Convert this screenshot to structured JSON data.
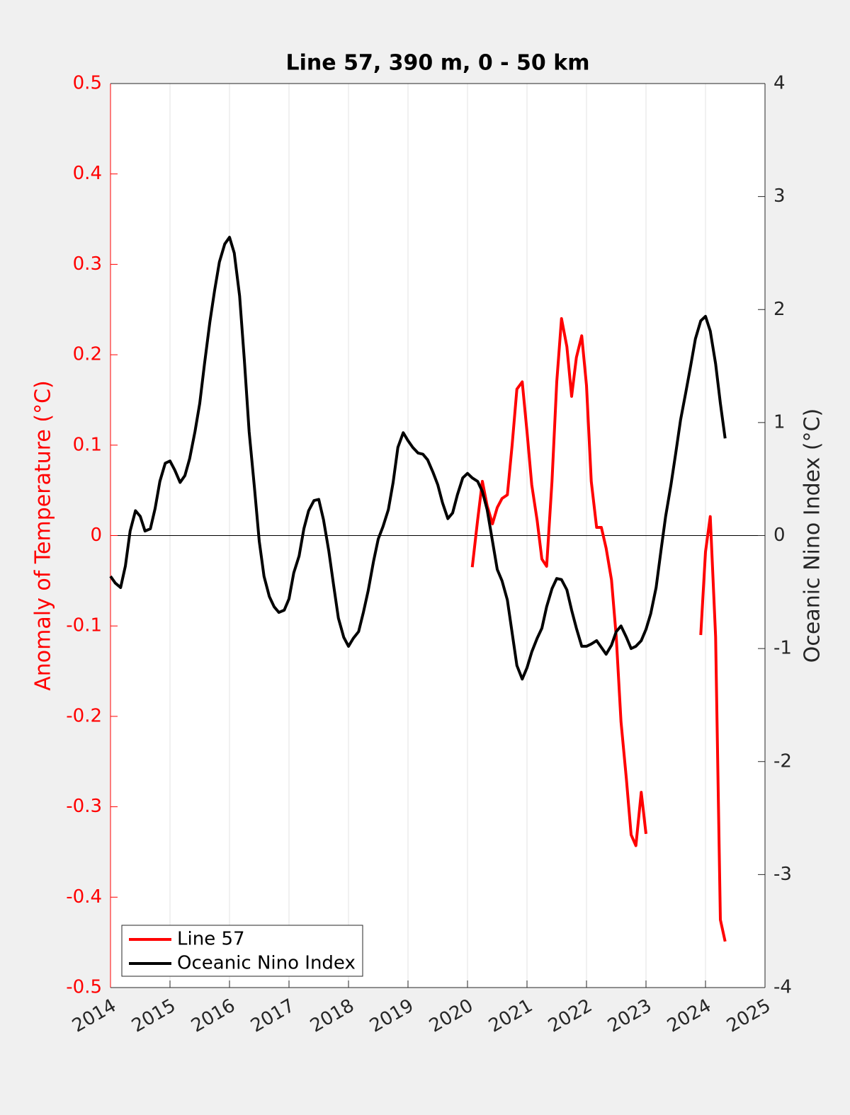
{
  "chart_data": {
    "type": "line",
    "title": "Line 57, 390 m, 0 - 50 km",
    "ylabel": "Anomaly of Temperature (°C)",
    "y2label": "Oceanic Nino Index (°C)",
    "ylabel_color": "#ff0000",
    "xlim": [
      2014,
      2025
    ],
    "xticks": [
      2014,
      2015,
      2016,
      2017,
      2018,
      2019,
      2020,
      2021,
      2022,
      2023,
      2024,
      2025
    ],
    "ylim": [
      -0.5,
      0.5
    ],
    "yticks": [
      -0.5,
      -0.4,
      -0.3,
      -0.2,
      -0.1,
      0,
      0.1,
      0.2,
      0.3,
      0.4,
      0.5
    ],
    "y2lim": [
      -4,
      4
    ],
    "y2ticks": [
      -4,
      -3,
      -2,
      -1,
      0,
      1,
      2,
      3,
      4
    ],
    "grid": "x",
    "legend": "lower left",
    "x": [
      2014.0,
      2014.08,
      2014.17,
      2014.25,
      2014.33,
      2014.42,
      2014.5,
      2014.58,
      2014.67,
      2014.75,
      2014.83,
      2014.92,
      2015.0,
      2015.08,
      2015.17,
      2015.25,
      2015.33,
      2015.42,
      2015.5,
      2015.58,
      2015.67,
      2015.75,
      2015.83,
      2015.92,
      2016.0,
      2016.08,
      2016.17,
      2016.25,
      2016.33,
      2016.42,
      2016.5,
      2016.58,
      2016.67,
      2016.75,
      2016.83,
      2016.92,
      2017.0,
      2017.08,
      2017.17,
      2017.25,
      2017.33,
      2017.42,
      2017.5,
      2017.58,
      2017.67,
      2017.75,
      2017.83,
      2017.92,
      2018.0,
      2018.08,
      2018.17,
      2018.25,
      2018.33,
      2018.42,
      2018.5,
      2018.58,
      2018.67,
      2018.75,
      2018.83,
      2018.92,
      2019.0,
      2019.08,
      2019.17,
      2019.25,
      2019.33,
      2019.42,
      2019.5,
      2019.58,
      2019.67,
      2019.75,
      2019.83,
      2019.92,
      2020.0,
      2020.08,
      2020.17,
      2020.25,
      2020.33,
      2020.42,
      2020.5,
      2020.58,
      2020.67,
      2020.75,
      2020.83,
      2020.92,
      2021.0,
      2021.08,
      2021.17,
      2021.25,
      2021.33,
      2021.42,
      2021.5,
      2021.58,
      2021.67,
      2021.75,
      2021.83,
      2021.92,
      2022.0,
      2022.08,
      2022.17,
      2022.25,
      2022.33,
      2022.42,
      2022.5,
      2022.58,
      2022.67,
      2022.75,
      2022.83,
      2022.92,
      2023.0,
      2023.08,
      2023.17,
      2023.25,
      2023.33,
      2023.42,
      2023.5,
      2023.58,
      2023.67,
      2023.75,
      2023.83,
      2023.92,
      2024.0,
      2024.08,
      2024.17,
      2024.25,
      2024.33
    ],
    "series": [
      {
        "name": "Line 57",
        "color": "#ff0000",
        "axis": "y",
        "values": [
          null,
          null,
          null,
          null,
          null,
          null,
          null,
          null,
          null,
          null,
          null,
          null,
          null,
          null,
          null,
          null,
          null,
          null,
          null,
          null,
          null,
          null,
          null,
          null,
          null,
          null,
          null,
          null,
          null,
          null,
          null,
          null,
          null,
          null,
          null,
          null,
          null,
          null,
          null,
          null,
          null,
          null,
          null,
          null,
          null,
          null,
          null,
          null,
          null,
          null,
          null,
          null,
          null,
          null,
          null,
          null,
          null,
          null,
          null,
          null,
          null,
          null,
          null,
          null,
          null,
          null,
          null,
          null,
          null,
          null,
          null,
          null,
          null,
          -0.035,
          0.017,
          0.06,
          0.033,
          0.013,
          0.031,
          0.041,
          0.045,
          0.1,
          0.162,
          0.17,
          0.115,
          0.056,
          0.017,
          -0.026,
          -0.034,
          0.06,
          0.17,
          0.24,
          0.209,
          0.154,
          0.197,
          0.221,
          0.166,
          0.06,
          0.009,
          0.009,
          -0.014,
          -0.049,
          -0.112,
          -0.206,
          -0.269,
          -0.331,
          -0.343,
          -0.284,
          -0.33,
          null,
          null,
          null,
          null,
          null,
          null,
          null,
          null,
          null,
          null,
          -0.11,
          -0.018,
          0.021,
          -0.112,
          -0.425,
          -0.449
        ]
      },
      {
        "name": "Oceanic Nino Index",
        "color": "#000000",
        "axis": "y2",
        "values": [
          -0.36,
          -0.42,
          -0.46,
          -0.27,
          0.04,
          0.22,
          0.17,
          0.04,
          0.06,
          0.24,
          0.48,
          0.64,
          0.66,
          0.58,
          0.47,
          0.53,
          0.68,
          0.92,
          1.17,
          1.52,
          1.89,
          2.17,
          2.42,
          2.58,
          2.64,
          2.5,
          2.12,
          1.55,
          0.92,
          0.42,
          -0.05,
          -0.36,
          -0.54,
          -0.63,
          -0.68,
          -0.66,
          -0.56,
          -0.33,
          -0.18,
          0.06,
          0.22,
          0.31,
          0.32,
          0.14,
          -0.14,
          -0.44,
          -0.73,
          -0.9,
          -0.98,
          -0.91,
          -0.85,
          -0.68,
          -0.49,
          -0.23,
          -0.03,
          0.08,
          0.23,
          0.47,
          0.78,
          0.91,
          0.84,
          0.78,
          0.73,
          0.72,
          0.67,
          0.56,
          0.45,
          0.29,
          0.15,
          0.2,
          0.36,
          0.51,
          0.55,
          0.51,
          0.48,
          0.39,
          0.23,
          -0.05,
          -0.3,
          -0.4,
          -0.57,
          -0.86,
          -1.15,
          -1.27,
          -1.17,
          -1.03,
          -0.91,
          -0.82,
          -0.63,
          -0.47,
          -0.38,
          -0.39,
          -0.48,
          -0.66,
          -0.82,
          -0.98,
          -0.98,
          -0.96,
          -0.93,
          -0.99,
          -1.05,
          -0.97,
          -0.85,
          -0.8,
          -0.9,
          -1.0,
          -0.98,
          -0.93,
          -0.83,
          -0.69,
          -0.46,
          -0.14,
          0.17,
          0.45,
          0.73,
          1.02,
          1.27,
          1.5,
          1.74,
          1.9,
          1.94,
          1.81,
          1.52,
          1.17,
          0.86
        ]
      }
    ]
  }
}
